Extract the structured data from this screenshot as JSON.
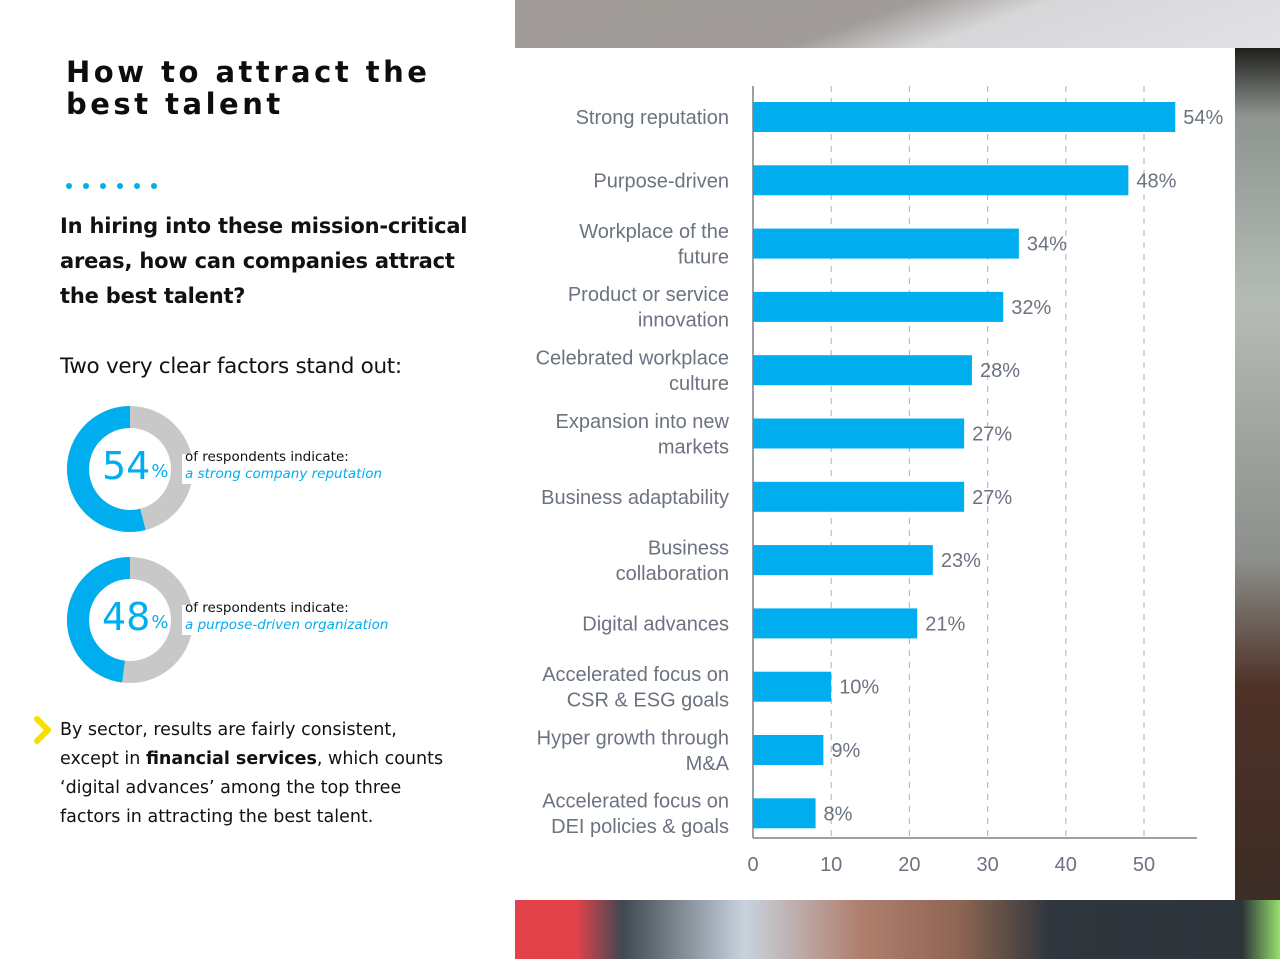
{
  "header": {
    "title": "How to attract the best talent",
    "decoration_dots": 6
  },
  "intro": {
    "question": "In hiring into these mission-critical areas, how can companies attract the best talent?",
    "factors_intro": "Two very clear factors stand out:"
  },
  "stats": [
    {
      "value": "54",
      "unit": "%",
      "fraction": 0.54,
      "label": "of respondents indicate:",
      "sub": "a strong company reputation"
    },
    {
      "value": "48",
      "unit": "%",
      "fraction": 0.48,
      "label": "of respondents indicate:",
      "sub": "a purpose-driven organization"
    }
  ],
  "note": {
    "icon": "chevron-right-icon",
    "before": "By sector, results are fairly consistent, except in ",
    "bold": "financial services",
    "after": ", which counts ‘digital advances’ among the top three factors in attracting the best talent."
  },
  "colors": {
    "accent": "#00aeef",
    "ring_track": "#c8c8c8",
    "chevron": "#f5e000",
    "axis_text": "#6b7380",
    "grid": "#b8bcc2"
  },
  "chart_data": {
    "type": "bar",
    "orientation": "horizontal",
    "title": "",
    "xlabel": "",
    "ylabel": "",
    "categories": [
      [
        "Strong reputation"
      ],
      [
        "Purpose-driven"
      ],
      [
        "Workplace of the",
        "future"
      ],
      [
        "Product or service",
        "innovation"
      ],
      [
        "Celebrated workplace",
        "culture"
      ],
      [
        "Expansion into new",
        "markets"
      ],
      [
        "Business adaptability"
      ],
      [
        "Business",
        "collaboration"
      ],
      [
        "Digital advances"
      ],
      [
        "Accelerated focus on",
        "CSR & ESG goals"
      ],
      [
        "Hyper growth through",
        "M&A"
      ],
      [
        "Accelerated focus on",
        "DEI policies & goals"
      ]
    ],
    "values": [
      54,
      48,
      34,
      32,
      28,
      27,
      27,
      23,
      21,
      10,
      9,
      8
    ],
    "value_labels": [
      "54%",
      "48%",
      "34%",
      "32%",
      "28%",
      "27%",
      "27%",
      "23%",
      "21%",
      "10%",
      "9%",
      "8%"
    ],
    "xlim": [
      0,
      57
    ],
    "xticks": [
      0,
      10,
      20,
      30,
      40,
      50
    ],
    "grid": "vertical dashed",
    "legend": "none"
  }
}
